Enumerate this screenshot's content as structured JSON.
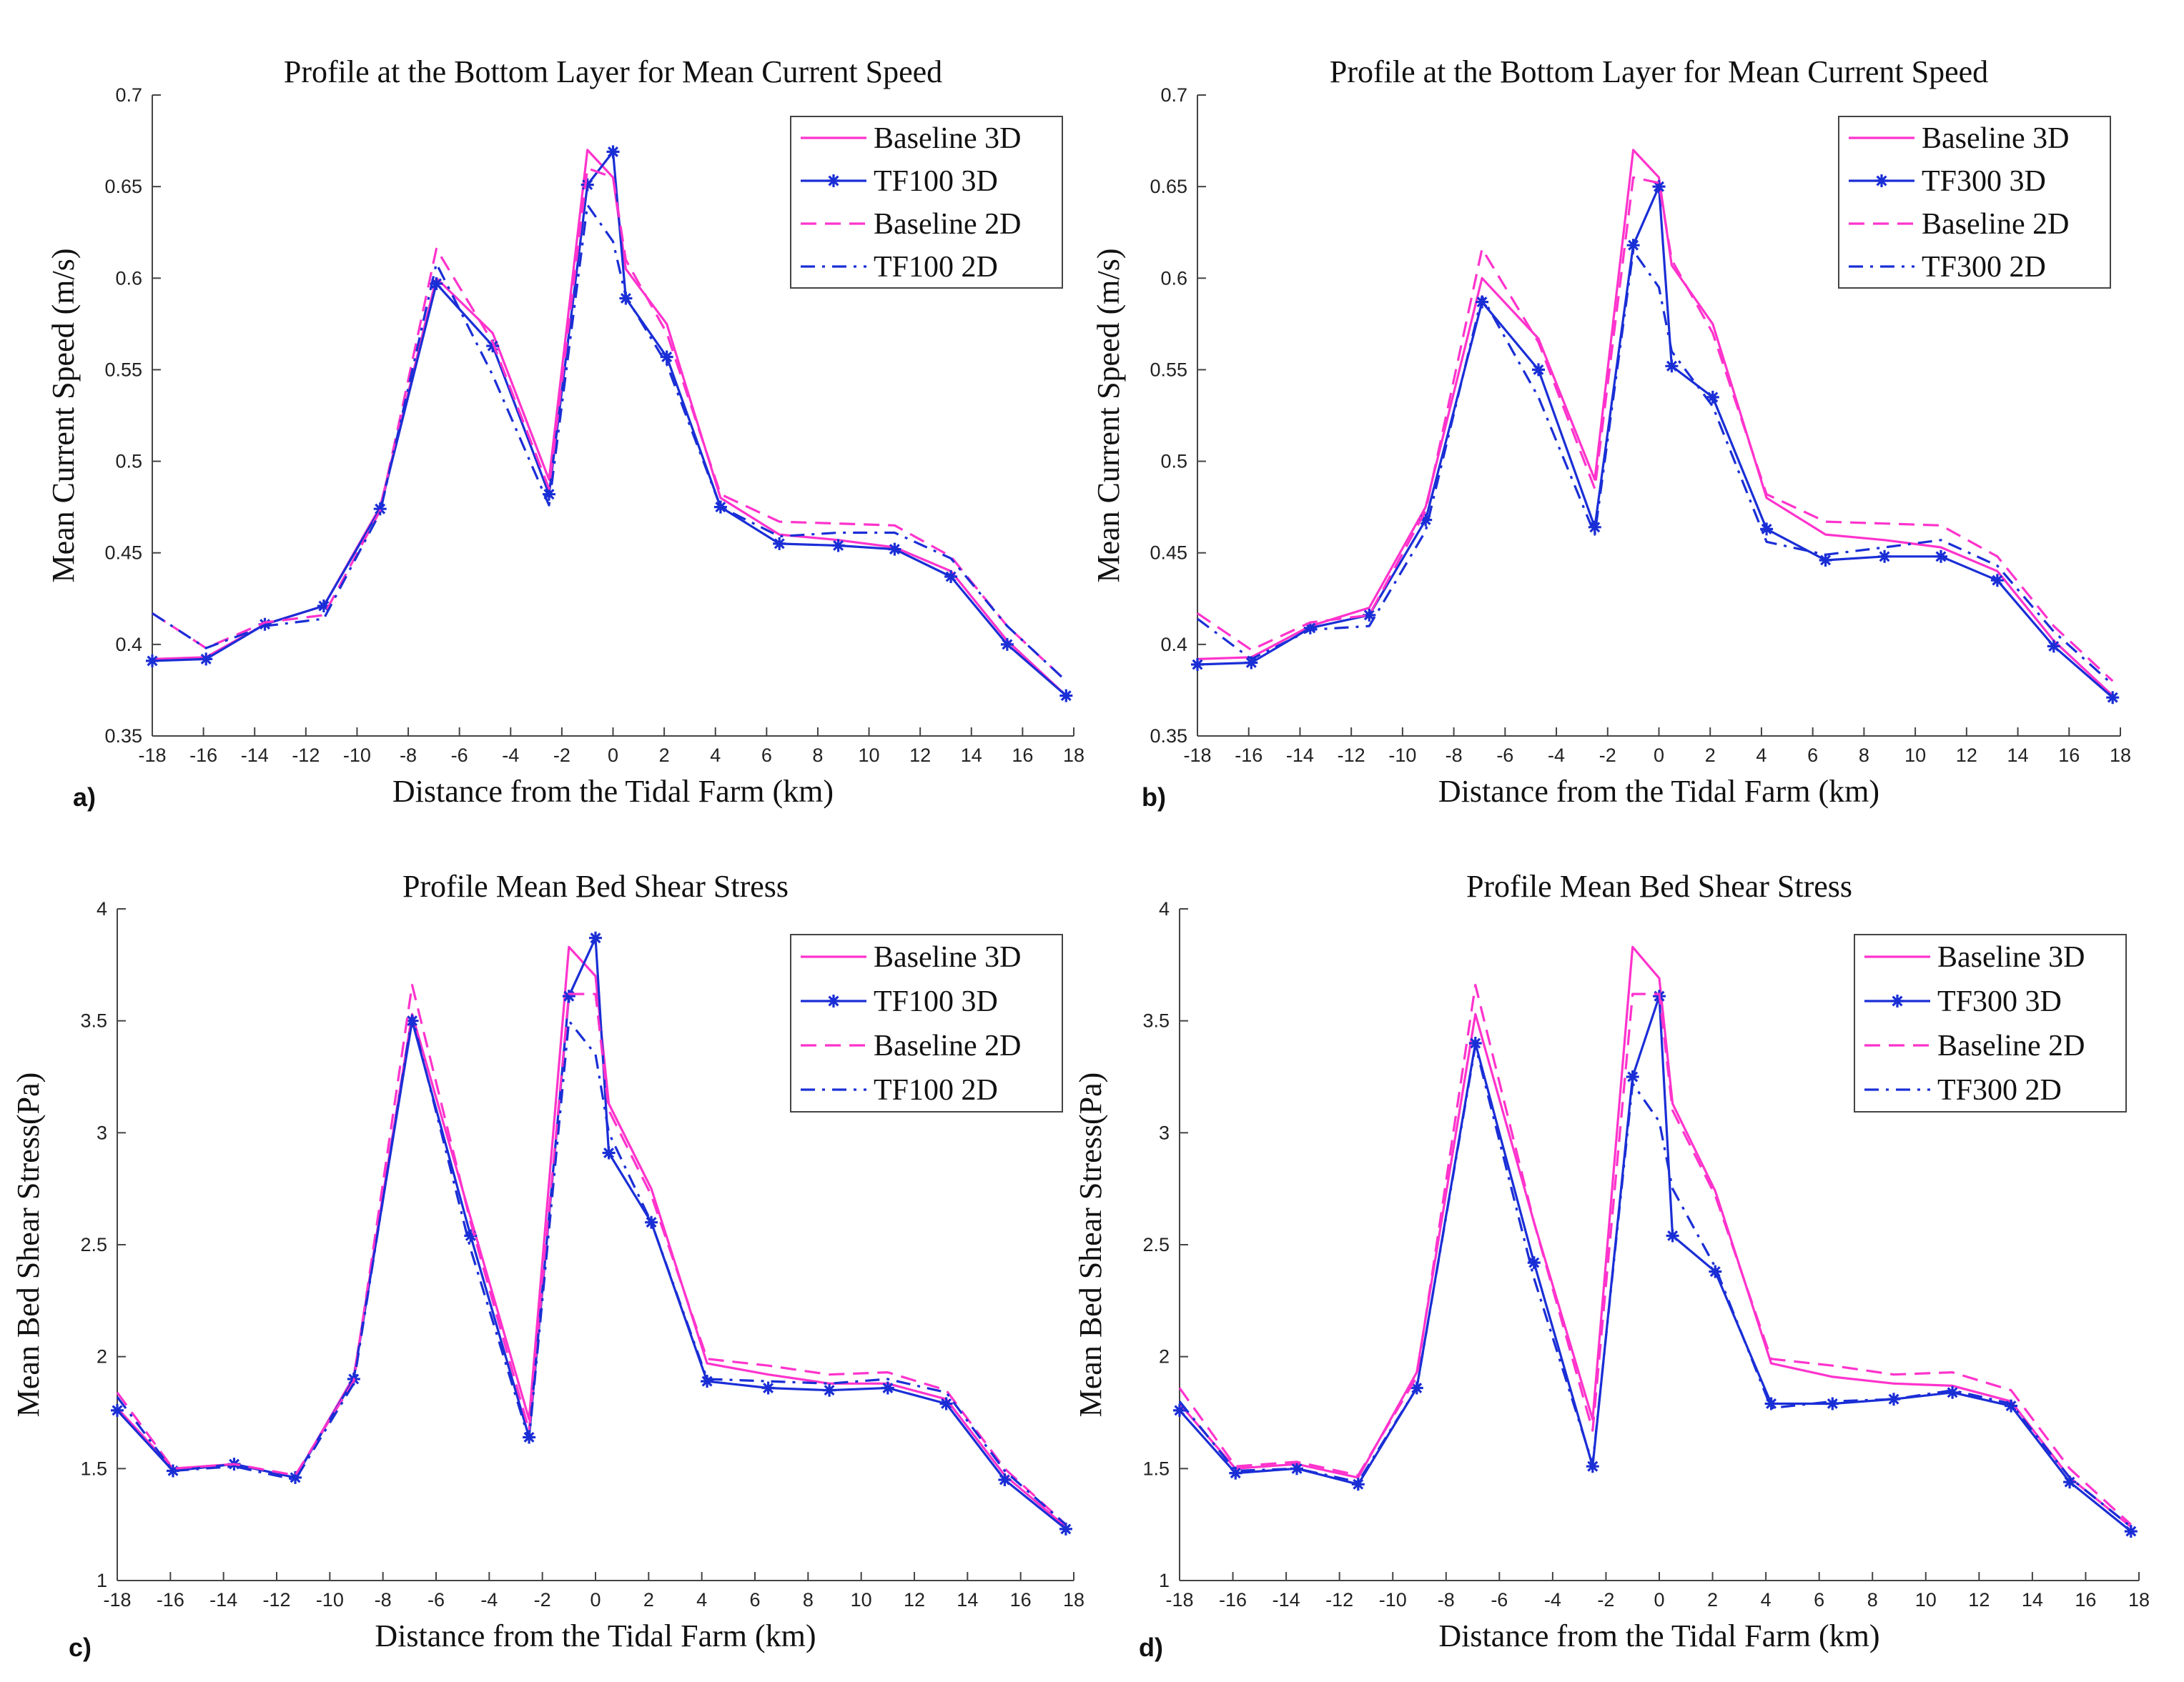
{
  "colors": {
    "baseline": "#ff33cc",
    "tf": "#1a2ed6"
  },
  "chart_data": [
    {
      "panel_label": "a)",
      "type": "line",
      "title": "Profile at the Bottom Layer for Mean Current Speed",
      "xlabel": "Distance from the Tidal Farm (km)",
      "ylabel": "Mean Current Speed (m/s)",
      "xlim": [
        -18,
        18
      ],
      "ylim": [
        0.35,
        0.7
      ],
      "xticks": [
        -18,
        -16,
        -14,
        -12,
        -10,
        -8,
        -6,
        -4,
        -2,
        0,
        2,
        4,
        6,
        8,
        10,
        12,
        14,
        16,
        18
      ],
      "yticks": [
        0.35,
        0.4,
        0.45,
        0.5,
        0.55,
        0.6,
        0.65,
        0.7
      ],
      "ytick_labels": [
        "0.35",
        "0.4",
        "0.45",
        "0.5",
        "0.55",
        "0.6",
        "0.65",
        "0.7"
      ],
      "legend_position": "top-right",
      "series": [
        {
          "name": "Baseline 3D",
          "style": "solid",
          "color": "#ff33cc",
          "x": [
            -18,
            -15.9,
            -13.6,
            -11.3,
            -9.1,
            -6.9,
            -4.7,
            -2.5,
            -1.0,
            0,
            0.5,
            2.1,
            4.2,
            6.5,
            8.8,
            11.0,
            13.2,
            15.4,
            17.7
          ],
          "y": [
            0.392,
            0.393,
            0.411,
            0.421,
            0.475,
            0.6,
            0.57,
            0.49,
            0.67,
            0.655,
            0.605,
            0.575,
            0.48,
            0.46,
            0.457,
            0.453,
            0.44,
            0.402,
            0.372
          ]
        },
        {
          "name": "TF100 3D",
          "style": "solid-star",
          "color": "#1a2ed6",
          "x": [
            -18,
            -15.9,
            -13.6,
            -11.3,
            -9.1,
            -6.9,
            -4.7,
            -2.5,
            -1.0,
            0,
            0.5,
            2.1,
            4.2,
            6.5,
            8.8,
            11.0,
            13.2,
            15.4,
            17.7
          ],
          "y": [
            0.391,
            0.392,
            0.411,
            0.421,
            0.474,
            0.597,
            0.563,
            0.482,
            0.651,
            0.669,
            0.589,
            0.557,
            0.475,
            0.455,
            0.454,
            0.452,
            0.437,
            0.4,
            0.372
          ]
        },
        {
          "name": "Baseline 2D",
          "style": "dashed",
          "color": "#ff33cc",
          "x": [
            -18,
            -15.9,
            -13.6,
            -11.3,
            -9.1,
            -6.9,
            -4.7,
            -2.5,
            -1.0,
            0,
            0.5,
            2.1,
            4.2,
            6.5,
            8.8,
            11.0,
            13.2,
            15.4,
            17.7
          ],
          "y": [
            0.417,
            0.398,
            0.412,
            0.416,
            0.473,
            0.616,
            0.565,
            0.485,
            0.66,
            0.655,
            0.61,
            0.57,
            0.482,
            0.467,
            0.466,
            0.465,
            0.448,
            0.41,
            0.38
          ]
        },
        {
          "name": "TF100 2D",
          "style": "dashdot",
          "color": "#1a2ed6",
          "x": [
            -18,
            -15.9,
            -13.6,
            -11.3,
            -9.1,
            -6.9,
            -4.7,
            -2.5,
            -1.0,
            0,
            0.5,
            2.1,
            4.2,
            6.5,
            8.8,
            11.0,
            13.2,
            15.4,
            17.7
          ],
          "y": [
            0.417,
            0.398,
            0.41,
            0.414,
            0.472,
            0.608,
            0.547,
            0.476,
            0.64,
            0.62,
            0.59,
            0.553,
            0.475,
            0.459,
            0.461,
            0.461,
            0.447,
            0.41,
            0.38
          ]
        }
      ]
    },
    {
      "panel_label": "b)",
      "type": "line",
      "title": "Profile at the Bottom Layer for Mean Current Speed",
      "xlabel": "Distance from the Tidal Farm (km)",
      "ylabel": "Mean Current Speed (m/s)",
      "xlim": [
        -18,
        18
      ],
      "ylim": [
        0.35,
        0.7
      ],
      "xticks": [
        -18,
        -16,
        -14,
        -12,
        -10,
        -8,
        -6,
        -4,
        -2,
        0,
        2,
        4,
        6,
        8,
        10,
        12,
        14,
        16,
        18
      ],
      "yticks": [
        0.35,
        0.4,
        0.45,
        0.5,
        0.55,
        0.6,
        0.65,
        0.7
      ],
      "ytick_labels": [
        "0.35",
        "0.4",
        "0.45",
        "0.5",
        "0.55",
        "0.6",
        "0.65",
        "0.7"
      ],
      "legend_position": "top-right",
      "series": [
        {
          "name": "Baseline 3D",
          "style": "solid",
          "color": "#ff33cc",
          "x": [
            -18,
            -15.9,
            -13.6,
            -11.3,
            -9.1,
            -6.9,
            -4.7,
            -2.5,
            -1.0,
            0,
            0.5,
            2.1,
            4.2,
            6.5,
            8.8,
            11.0,
            13.2,
            15.4,
            17.7
          ],
          "y": [
            0.392,
            0.393,
            0.41,
            0.42,
            0.475,
            0.6,
            0.567,
            0.49,
            0.67,
            0.655,
            0.607,
            0.575,
            0.48,
            0.46,
            0.457,
            0.453,
            0.44,
            0.402,
            0.372
          ]
        },
        {
          "name": "TF300 3D",
          "style": "solid-star",
          "color": "#1a2ed6",
          "x": [
            -18,
            -15.9,
            -13.6,
            -11.3,
            -9.1,
            -6.9,
            -4.7,
            -2.5,
            -1.0,
            0,
            0.5,
            2.1,
            4.2,
            6.5,
            8.8,
            11.0,
            13.2,
            15.4,
            17.7
          ],
          "y": [
            0.389,
            0.39,
            0.409,
            0.416,
            0.468,
            0.587,
            0.55,
            0.464,
            0.618,
            0.65,
            0.552,
            0.535,
            0.463,
            0.446,
            0.448,
            0.448,
            0.435,
            0.399,
            0.371
          ]
        },
        {
          "name": "Baseline 2D",
          "style": "dashed",
          "color": "#ff33cc",
          "x": [
            -18,
            -15.9,
            -13.6,
            -11.3,
            -9.1,
            -6.9,
            -4.7,
            -2.5,
            -1.0,
            0,
            0.5,
            2.1,
            4.2,
            6.5,
            8.8,
            11.0,
            13.2,
            15.4,
            17.7
          ],
          "y": [
            0.417,
            0.397,
            0.412,
            0.416,
            0.473,
            0.616,
            0.565,
            0.485,
            0.655,
            0.652,
            0.61,
            0.57,
            0.482,
            0.467,
            0.466,
            0.465,
            0.448,
            0.41,
            0.38
          ]
        },
        {
          "name": "TF300 2D",
          "style": "dashdot",
          "color": "#1a2ed6",
          "x": [
            -18,
            -15.9,
            -13.6,
            -11.3,
            -9.1,
            -6.9,
            -4.7,
            -2.5,
            -1.0,
            0,
            0.5,
            2.1,
            4.2,
            6.5,
            8.8,
            11.0,
            13.2,
            15.4,
            17.7
          ],
          "y": [
            0.414,
            0.392,
            0.408,
            0.41,
            0.462,
            0.59,
            0.535,
            0.46,
            0.615,
            0.595,
            0.56,
            0.53,
            0.456,
            0.449,
            0.453,
            0.457,
            0.443,
            0.407,
            0.378
          ]
        }
      ]
    },
    {
      "panel_label": "c)",
      "type": "line",
      "title": "Profile Mean Bed Shear Stress",
      "xlabel": "Distance from the Tidal Farm (km)",
      "ylabel": "Mean Bed Shear Stress(Pa)",
      "xlim": [
        -18,
        18
      ],
      "ylim": [
        1,
        4
      ],
      "xticks": [
        -18,
        -16,
        -14,
        -12,
        -10,
        -8,
        -6,
        -4,
        -2,
        0,
        2,
        4,
        6,
        8,
        10,
        12,
        14,
        16,
        18
      ],
      "yticks": [
        1,
        1.5,
        2,
        2.5,
        3,
        3.5,
        4
      ],
      "ytick_labels": [
        "1",
        "1.5",
        "2",
        "2.5",
        "3",
        "3.5",
        "4"
      ],
      "legend_position": "top-right",
      "series": [
        {
          "name": "Baseline 3D",
          "style": "solid",
          "color": "#ff33cc",
          "x": [
            -18,
            -15.9,
            -13.6,
            -11.3,
            -9.1,
            -6.9,
            -4.7,
            -2.5,
            -1.0,
            0,
            0.5,
            2.1,
            4.2,
            6.5,
            8.8,
            11.0,
            13.2,
            15.4,
            17.7
          ],
          "y": [
            1.77,
            1.5,
            1.52,
            1.46,
            1.91,
            3.53,
            2.62,
            1.72,
            3.83,
            3.7,
            3.13,
            2.75,
            1.97,
            1.92,
            1.88,
            1.88,
            1.81,
            1.47,
            1.24
          ]
        },
        {
          "name": "TF100 3D",
          "style": "solid-star",
          "color": "#1a2ed6",
          "x": [
            -18,
            -15.9,
            -13.6,
            -11.3,
            -9.1,
            -6.9,
            -4.7,
            -2.5,
            -1.0,
            0,
            0.5,
            2.1,
            4.2,
            6.5,
            8.8,
            11.0,
            13.2,
            15.4,
            17.7
          ],
          "y": [
            1.76,
            1.49,
            1.52,
            1.46,
            1.9,
            3.5,
            2.54,
            1.64,
            3.61,
            3.87,
            2.91,
            2.6,
            1.89,
            1.86,
            1.85,
            1.86,
            1.79,
            1.45,
            1.23
          ]
        },
        {
          "name": "Baseline 2D",
          "style": "dashed",
          "color": "#ff33cc",
          "x": [
            -18,
            -15.9,
            -13.6,
            -11.3,
            -9.1,
            -6.9,
            -4.7,
            -2.5,
            -1.0,
            0,
            0.5,
            2.1,
            4.2,
            6.5,
            8.8,
            11.0,
            13.2,
            15.4,
            17.7
          ],
          "y": [
            1.84,
            1.5,
            1.52,
            1.47,
            1.89,
            3.66,
            2.6,
            1.67,
            3.62,
            3.62,
            3.1,
            2.72,
            1.99,
            1.96,
            1.92,
            1.93,
            1.85,
            1.5,
            1.25
          ]
        },
        {
          "name": "TF100 2D",
          "style": "dashdot",
          "color": "#1a2ed6",
          "x": [
            -18,
            -15.9,
            -13.6,
            -11.3,
            -9.1,
            -6.9,
            -4.7,
            -2.5,
            -1.0,
            0,
            0.5,
            2.1,
            4.2,
            6.5,
            8.8,
            11.0,
            13.2,
            15.4,
            17.7
          ],
          "y": [
            1.82,
            1.49,
            1.51,
            1.45,
            1.88,
            3.52,
            2.48,
            1.63,
            3.5,
            3.35,
            3.0,
            2.6,
            1.9,
            1.89,
            1.88,
            1.9,
            1.84,
            1.49,
            1.25
          ]
        }
      ]
    },
    {
      "panel_label": "d)",
      "type": "line",
      "title": "Profile Mean Bed Shear Stress",
      "xlabel": "Distance from the Tidal Farm (km)",
      "ylabel": "Mean Bed Shear Stress(Pa)",
      "xlim": [
        -18,
        18
      ],
      "ylim": [
        1,
        4
      ],
      "xticks": [
        -18,
        -16,
        -14,
        -12,
        -10,
        -8,
        -6,
        -4,
        -2,
        0,
        2,
        4,
        6,
        8,
        10,
        12,
        14,
        16,
        18
      ],
      "yticks": [
        1,
        1.5,
        2,
        2.5,
        3,
        3.5,
        4
      ],
      "ytick_labels": [
        "1",
        "1.5",
        "2",
        "2.5",
        "3",
        "3.5",
        "4"
      ],
      "legend_position": "top-right",
      "series": [
        {
          "name": "Baseline 3D",
          "style": "solid",
          "color": "#ff33cc",
          "x": [
            -18,
            -15.9,
            -13.6,
            -11.3,
            -9.1,
            -6.9,
            -4.7,
            -2.5,
            -1.0,
            0,
            0.5,
            2.1,
            4.2,
            6.5,
            8.8,
            11.0,
            13.2,
            15.4,
            17.7
          ],
          "y": [
            1.79,
            1.5,
            1.52,
            1.46,
            1.93,
            3.53,
            2.6,
            1.72,
            3.83,
            3.69,
            3.13,
            2.74,
            1.97,
            1.91,
            1.88,
            1.87,
            1.8,
            1.46,
            1.24
          ]
        },
        {
          "name": "TF300 3D",
          "style": "solid-star",
          "color": "#1a2ed6",
          "x": [
            -18,
            -15.9,
            -13.6,
            -11.3,
            -9.1,
            -6.9,
            -4.7,
            -2.5,
            -1.0,
            0,
            0.5,
            2.1,
            4.2,
            6.5,
            8.8,
            11.0,
            13.2,
            15.4,
            17.7
          ],
          "y": [
            1.76,
            1.48,
            1.5,
            1.43,
            1.86,
            3.4,
            2.42,
            1.51,
            3.25,
            3.61,
            2.54,
            2.38,
            1.79,
            1.79,
            1.81,
            1.84,
            1.78,
            1.44,
            1.22
          ]
        },
        {
          "name": "Baseline 2D",
          "style": "dashed",
          "color": "#ff33cc",
          "x": [
            -18,
            -15.9,
            -13.6,
            -11.3,
            -9.1,
            -6.9,
            -4.7,
            -2.5,
            -1.0,
            0,
            0.5,
            2.1,
            4.2,
            6.5,
            8.8,
            11.0,
            13.2,
            15.4,
            17.7
          ],
          "y": [
            1.86,
            1.51,
            1.53,
            1.47,
            1.91,
            3.66,
            2.6,
            1.67,
            3.62,
            3.62,
            3.1,
            2.72,
            1.99,
            1.96,
            1.92,
            1.93,
            1.85,
            1.5,
            1.25
          ]
        },
        {
          "name": "TF300 2D",
          "style": "dashdot",
          "color": "#1a2ed6",
          "x": [
            -18,
            -15.9,
            -13.6,
            -11.3,
            -9.1,
            -6.9,
            -4.7,
            -2.5,
            -1.0,
            0,
            0.5,
            2.1,
            4.2,
            6.5,
            8.8,
            11.0,
            13.2,
            15.4,
            17.7
          ],
          "y": [
            1.8,
            1.49,
            1.5,
            1.44,
            1.86,
            3.39,
            2.35,
            1.52,
            3.22,
            3.05,
            2.75,
            2.4,
            1.77,
            1.8,
            1.81,
            1.85,
            1.79,
            1.46,
            1.24
          ]
        }
      ]
    }
  ]
}
